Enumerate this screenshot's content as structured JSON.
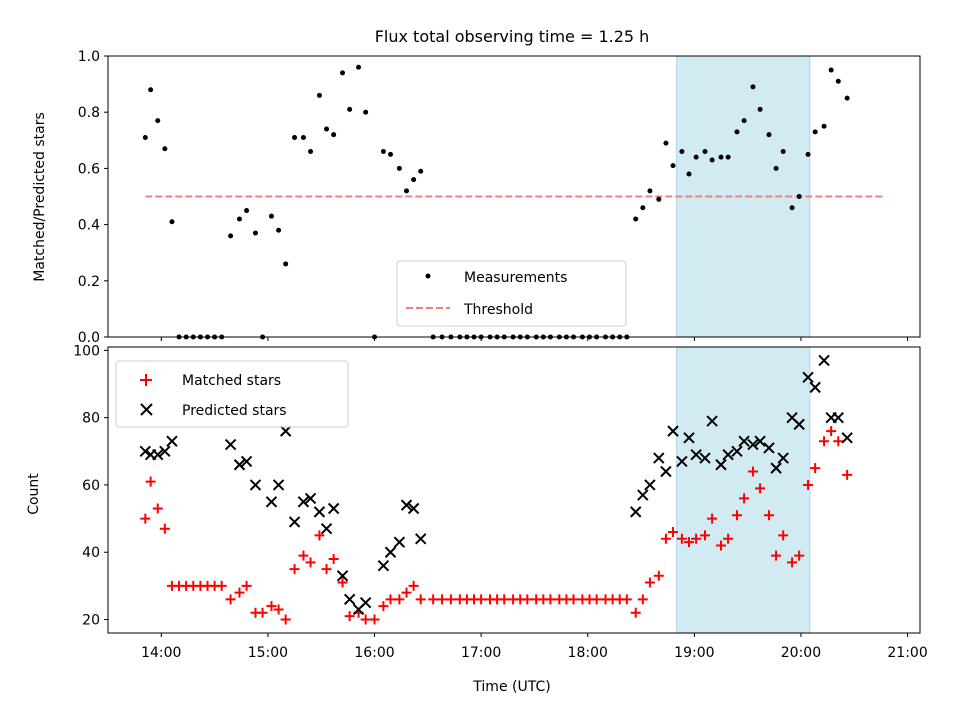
{
  "title": "Flux total observing time = 1.25 h",
  "colors": {
    "measurement": "#000000",
    "threshold": "#f08080",
    "matched": "#ff0000",
    "predicted": "#000000",
    "window": "#add8e6"
  },
  "chart_data": [
    {
      "type": "scatter",
      "ylabel": "Matched/Predicted stars",
      "xlim": [
        "13:30",
        "21:07"
      ],
      "ylim": [
        0,
        1
      ],
      "yticks": [
        "0.0",
        "0.2",
        "0.4",
        "0.6",
        "0.8",
        "1.0"
      ],
      "shaded_window": [
        "18:50",
        "20:05"
      ],
      "legend": {
        "placement": "lower-center",
        "entries": [
          "Measurements",
          "Threshold"
        ]
      },
      "threshold": {
        "name": "Threshold",
        "y": 0.5,
        "x": [
          "13:51",
          "20:47"
        ]
      },
      "series": [
        {
          "name": "Measurements",
          "points": [
            [
              "13:51",
              0.71
            ],
            [
              "13:54",
              0.88
            ],
            [
              "13:58",
              0.77
            ],
            [
              "14:02",
              0.67
            ],
            [
              "14:06",
              0.41
            ],
            [
              "14:10",
              0.0
            ],
            [
              "14:14",
              0.0
            ],
            [
              "14:18",
              0.0
            ],
            [
              "14:22",
              0.0
            ],
            [
              "14:26",
              0.0
            ],
            [
              "14:30",
              0.0
            ],
            [
              "14:34",
              0.0
            ],
            [
              "14:39",
              0.36
            ],
            [
              "14:44",
              0.42
            ],
            [
              "14:48",
              0.45
            ],
            [
              "14:53",
              0.37
            ],
            [
              "14:57",
              0.0
            ],
            [
              "15:02",
              0.43
            ],
            [
              "15:06",
              0.38
            ],
            [
              "15:10",
              0.26
            ],
            [
              "15:15",
              0.71
            ],
            [
              "15:20",
              0.71
            ],
            [
              "15:24",
              0.66
            ],
            [
              "15:29",
              0.86
            ],
            [
              "15:33",
              0.74
            ],
            [
              "15:37",
              0.72
            ],
            [
              "15:42",
              0.94
            ],
            [
              "15:46",
              0.81
            ],
            [
              "15:51",
              0.96
            ],
            [
              "15:55",
              0.8
            ],
            [
              "16:00",
              0.0
            ],
            [
              "16:05",
              0.66
            ],
            [
              "16:09",
              0.65
            ],
            [
              "16:14",
              0.6
            ],
            [
              "16:18",
              0.52
            ],
            [
              "16:22",
              0.56
            ],
            [
              "16:26",
              0.59
            ],
            [
              "16:33",
              0.0
            ],
            [
              "16:38",
              0.0
            ],
            [
              "16:43",
              0.0
            ],
            [
              "16:48",
              0.0
            ],
            [
              "16:52",
              0.0
            ],
            [
              "16:56",
              0.0
            ],
            [
              "17:00",
              0.0
            ],
            [
              "17:05",
              0.0
            ],
            [
              "17:09",
              0.0
            ],
            [
              "17:13",
              0.0
            ],
            [
              "17:18",
              0.0
            ],
            [
              "17:22",
              0.0
            ],
            [
              "17:26",
              0.0
            ],
            [
              "17:31",
              0.0
            ],
            [
              "17:35",
              0.0
            ],
            [
              "17:39",
              0.0
            ],
            [
              "17:44",
              0.0
            ],
            [
              "17:48",
              0.0
            ],
            [
              "17:52",
              0.0
            ],
            [
              "17:57",
              0.0
            ],
            [
              "18:01",
              0.0
            ],
            [
              "18:05",
              0.0
            ],
            [
              "18:10",
              0.0
            ],
            [
              "18:14",
              0.0
            ],
            [
              "18:18",
              0.0
            ],
            [
              "18:22",
              0.0
            ],
            [
              "18:27",
              0.42
            ],
            [
              "18:31",
              0.46
            ],
            [
              "18:35",
              0.52
            ],
            [
              "18:40",
              0.49
            ],
            [
              "18:44",
              0.69
            ],
            [
              "18:48",
              0.61
            ],
            [
              "18:53",
              0.66
            ],
            [
              "18:57",
              0.58
            ],
            [
              "19:01",
              0.64
            ],
            [
              "19:06",
              0.66
            ],
            [
              "19:10",
              0.63
            ],
            [
              "19:15",
              0.64
            ],
            [
              "19:19",
              0.64
            ],
            [
              "19:24",
              0.73
            ],
            [
              "19:28",
              0.77
            ],
            [
              "19:33",
              0.89
            ],
            [
              "19:37",
              0.81
            ],
            [
              "19:42",
              0.72
            ],
            [
              "19:46",
              0.6
            ],
            [
              "19:50",
              0.66
            ],
            [
              "19:55",
              0.46
            ],
            [
              "19:59",
              0.5
            ],
            [
              "20:04",
              0.65
            ],
            [
              "20:08",
              0.73
            ],
            [
              "20:13",
              0.75
            ],
            [
              "20:17",
              0.95
            ],
            [
              "20:21",
              0.91
            ],
            [
              "20:26",
              0.85
            ]
          ]
        }
      ]
    },
    {
      "type": "scatter",
      "xlabel": "Time (UTC)",
      "ylabel": "Count",
      "xlim": [
        "13:30",
        "21:07"
      ],
      "ylim": [
        16,
        101
      ],
      "yticks": [
        "20",
        "40",
        "60",
        "80",
        "100"
      ],
      "xticks": [
        "14:00",
        "15:00",
        "16:00",
        "17:00",
        "18:00",
        "19:00",
        "20:00",
        "21:00"
      ],
      "shaded_window": [
        "18:50",
        "20:05"
      ],
      "legend": {
        "placement": "top-left",
        "entries": [
          "Matched stars",
          "Predicted stars"
        ]
      },
      "series": [
        {
          "name": "Matched stars",
          "marker": "plus",
          "points": [
            [
              "13:51",
              50
            ],
            [
              "13:54",
              61
            ],
            [
              "13:58",
              53
            ],
            [
              "14:02",
              47
            ],
            [
              "14:06",
              30
            ],
            [
              "14:10",
              30
            ],
            [
              "14:14",
              30
            ],
            [
              "14:18",
              30
            ],
            [
              "14:22",
              30
            ],
            [
              "14:26",
              30
            ],
            [
              "14:30",
              30
            ],
            [
              "14:34",
              30
            ],
            [
              "14:39",
              26
            ],
            [
              "14:44",
              28
            ],
            [
              "14:48",
              30
            ],
            [
              "14:53",
              22
            ],
            [
              "14:57",
              22
            ],
            [
              "15:02",
              24
            ],
            [
              "15:06",
              23
            ],
            [
              "15:10",
              20
            ],
            [
              "15:15",
              35
            ],
            [
              "15:20",
              39
            ],
            [
              "15:24",
              37
            ],
            [
              "15:29",
              45
            ],
            [
              "15:33",
              35
            ],
            [
              "15:37",
              38
            ],
            [
              "15:42",
              31
            ],
            [
              "15:46",
              21
            ],
            [
              "15:51",
              22
            ],
            [
              "15:55",
              20
            ],
            [
              "16:00",
              20
            ],
            [
              "16:05",
              24
            ],
            [
              "16:09",
              26
            ],
            [
              "16:14",
              26
            ],
            [
              "16:18",
              28
            ],
            [
              "16:22",
              30
            ],
            [
              "16:26",
              26
            ],
            [
              "16:33",
              26
            ],
            [
              "16:38",
              26
            ],
            [
              "16:43",
              26
            ],
            [
              "16:48",
              26
            ],
            [
              "16:52",
              26
            ],
            [
              "16:56",
              26
            ],
            [
              "17:00",
              26
            ],
            [
              "17:05",
              26
            ],
            [
              "17:09",
              26
            ],
            [
              "17:13",
              26
            ],
            [
              "17:18",
              26
            ],
            [
              "17:22",
              26
            ],
            [
              "17:26",
              26
            ],
            [
              "17:31",
              26
            ],
            [
              "17:35",
              26
            ],
            [
              "17:39",
              26
            ],
            [
              "17:44",
              26
            ],
            [
              "17:48",
              26
            ],
            [
              "17:52",
              26
            ],
            [
              "17:57",
              26
            ],
            [
              "18:01",
              26
            ],
            [
              "18:05",
              26
            ],
            [
              "18:10",
              26
            ],
            [
              "18:14",
              26
            ],
            [
              "18:18",
              26
            ],
            [
              "18:22",
              26
            ],
            [
              "18:27",
              22
            ],
            [
              "18:31",
              26
            ],
            [
              "18:35",
              31
            ],
            [
              "18:40",
              33
            ],
            [
              "18:44",
              44
            ],
            [
              "18:48",
              46
            ],
            [
              "18:53",
              44
            ],
            [
              "18:57",
              43
            ],
            [
              "19:01",
              44
            ],
            [
              "19:06",
              45
            ],
            [
              "19:10",
              50
            ],
            [
              "19:15",
              42
            ],
            [
              "19:19",
              44
            ],
            [
              "19:24",
              51
            ],
            [
              "19:28",
              56
            ],
            [
              "19:33",
              64
            ],
            [
              "19:37",
              59
            ],
            [
              "19:42",
              51
            ],
            [
              "19:46",
              39
            ],
            [
              "19:50",
              45
            ],
            [
              "19:55",
              37
            ],
            [
              "19:59",
              39
            ],
            [
              "20:04",
              60
            ],
            [
              "20:08",
              65
            ],
            [
              "20:13",
              73
            ],
            [
              "20:17",
              76
            ],
            [
              "20:21",
              73
            ],
            [
              "20:26",
              63
            ]
          ]
        },
        {
          "name": "Predicted stars",
          "marker": "x",
          "points": [
            [
              "13:51",
              70
            ],
            [
              "13:54",
              69
            ],
            [
              "13:58",
              69
            ],
            [
              "14:02",
              70
            ],
            [
              "14:06",
              73
            ],
            [
              "14:39",
              72
            ],
            [
              "14:44",
              66
            ],
            [
              "14:48",
              67
            ],
            [
              "14:53",
              60
            ],
            [
              "15:02",
              55
            ],
            [
              "15:06",
              60
            ],
            [
              "15:10",
              76
            ],
            [
              "15:15",
              49
            ],
            [
              "15:20",
              55
            ],
            [
              "15:24",
              56
            ],
            [
              "15:29",
              52
            ],
            [
              "15:33",
              47
            ],
            [
              "15:37",
              53
            ],
            [
              "15:42",
              33
            ],
            [
              "15:46",
              26
            ],
            [
              "15:51",
              23
            ],
            [
              "15:55",
              25
            ],
            [
              "16:05",
              36
            ],
            [
              "16:09",
              40
            ],
            [
              "16:14",
              43
            ],
            [
              "16:18",
              54
            ],
            [
              "16:22",
              53
            ],
            [
              "16:26",
              44
            ],
            [
              "18:27",
              52
            ],
            [
              "18:31",
              57
            ],
            [
              "18:35",
              60
            ],
            [
              "18:40",
              68
            ],
            [
              "18:44",
              64
            ],
            [
              "18:48",
              76
            ],
            [
              "18:53",
              67
            ],
            [
              "18:57",
              74
            ],
            [
              "19:01",
              69
            ],
            [
              "19:06",
              68
            ],
            [
              "19:10",
              79
            ],
            [
              "19:15",
              66
            ],
            [
              "19:19",
              69
            ],
            [
              "19:24",
              70
            ],
            [
              "19:28",
              73
            ],
            [
              "19:33",
              72
            ],
            [
              "19:37",
              73
            ],
            [
              "19:42",
              71
            ],
            [
              "19:46",
              65
            ],
            [
              "19:50",
              68
            ],
            [
              "19:55",
              80
            ],
            [
              "19:59",
              78
            ],
            [
              "20:04",
              92
            ],
            [
              "20:08",
              89
            ],
            [
              "20:13",
              97
            ],
            [
              "20:17",
              80
            ],
            [
              "20:21",
              80
            ],
            [
              "20:26",
              74
            ]
          ]
        }
      ]
    }
  ]
}
